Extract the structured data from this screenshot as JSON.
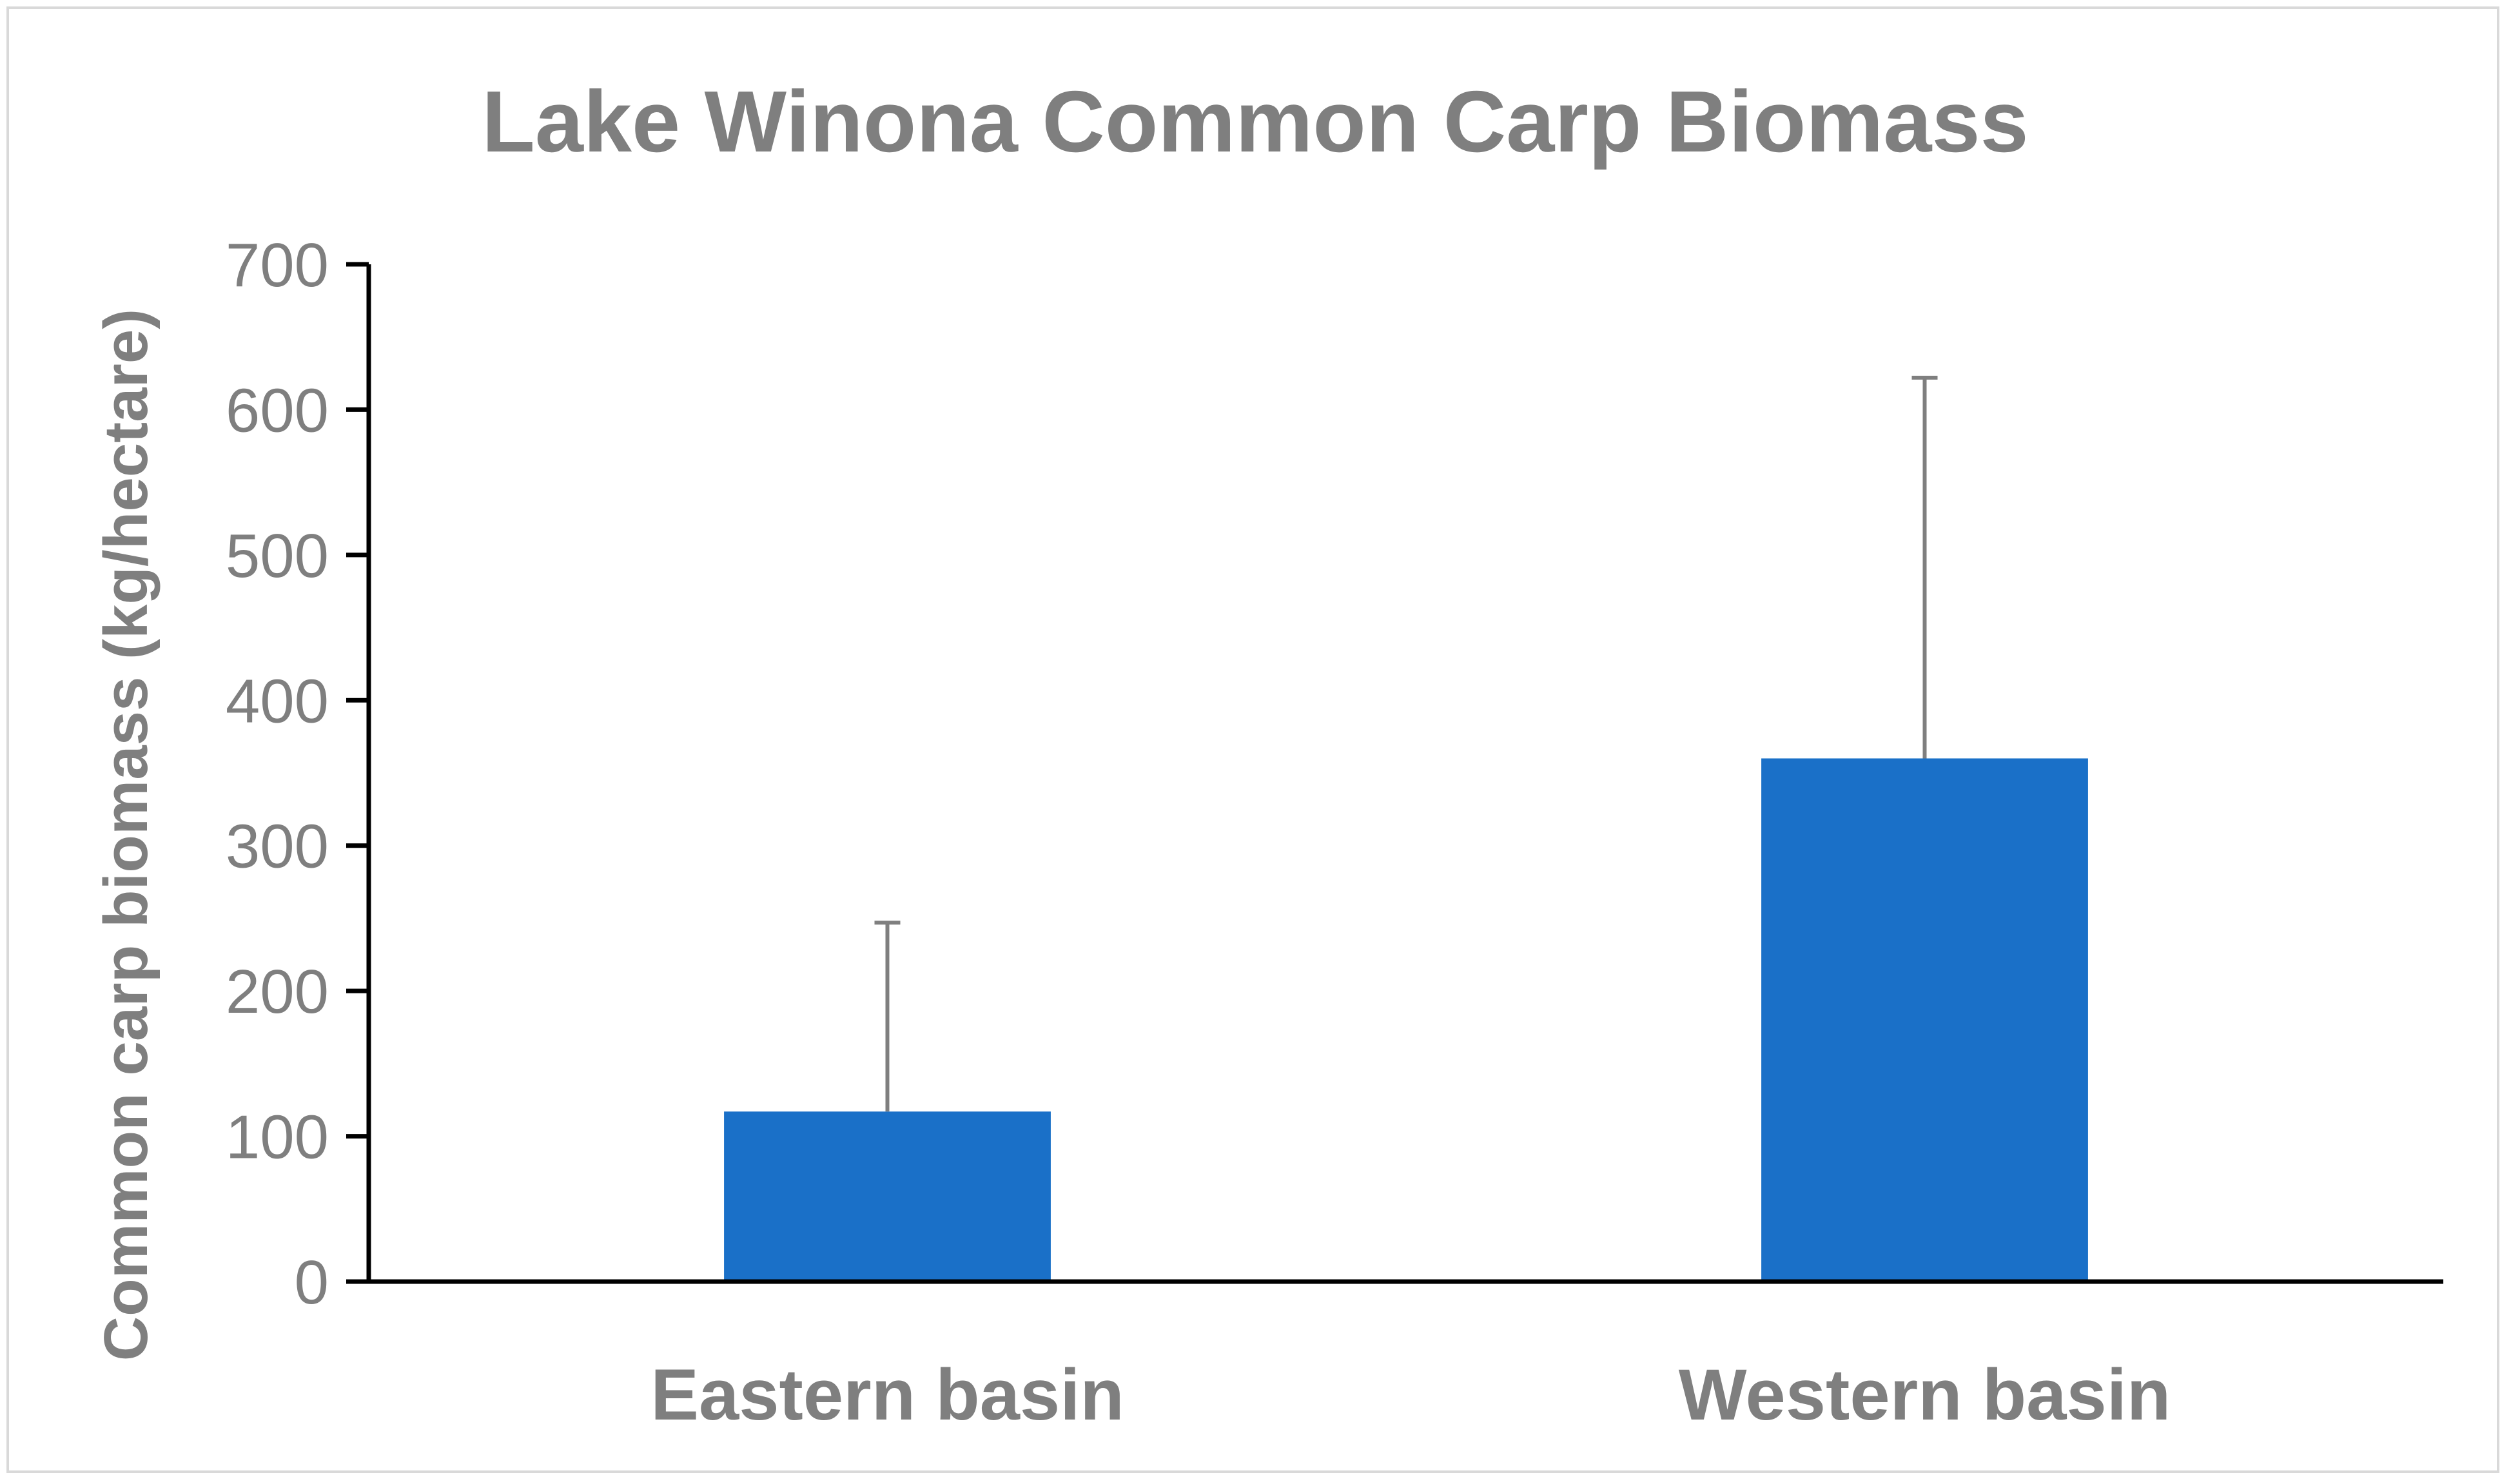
{
  "chart_data": {
    "type": "bar",
    "title": "Lake Winona Common Carp Biomass",
    "xlabel": "",
    "ylabel": "Common carp biomass (kg/hectare)",
    "categories": [
      "Eastern basin",
      "Western basin"
    ],
    "values": [
      117,
      360
    ],
    "error_upper": [
      247,
      622
    ],
    "ylim": [
      0,
      700
    ],
    "yticks": [
      0,
      100,
      200,
      300,
      400,
      500,
      600,
      700
    ],
    "grid": false,
    "legend": "none",
    "colors": {
      "bar": "#1a70c8",
      "error_bar": "#7f7f7f",
      "axis": "#000000",
      "text": "#7f7f7f",
      "border": "#d9d9d9"
    }
  }
}
